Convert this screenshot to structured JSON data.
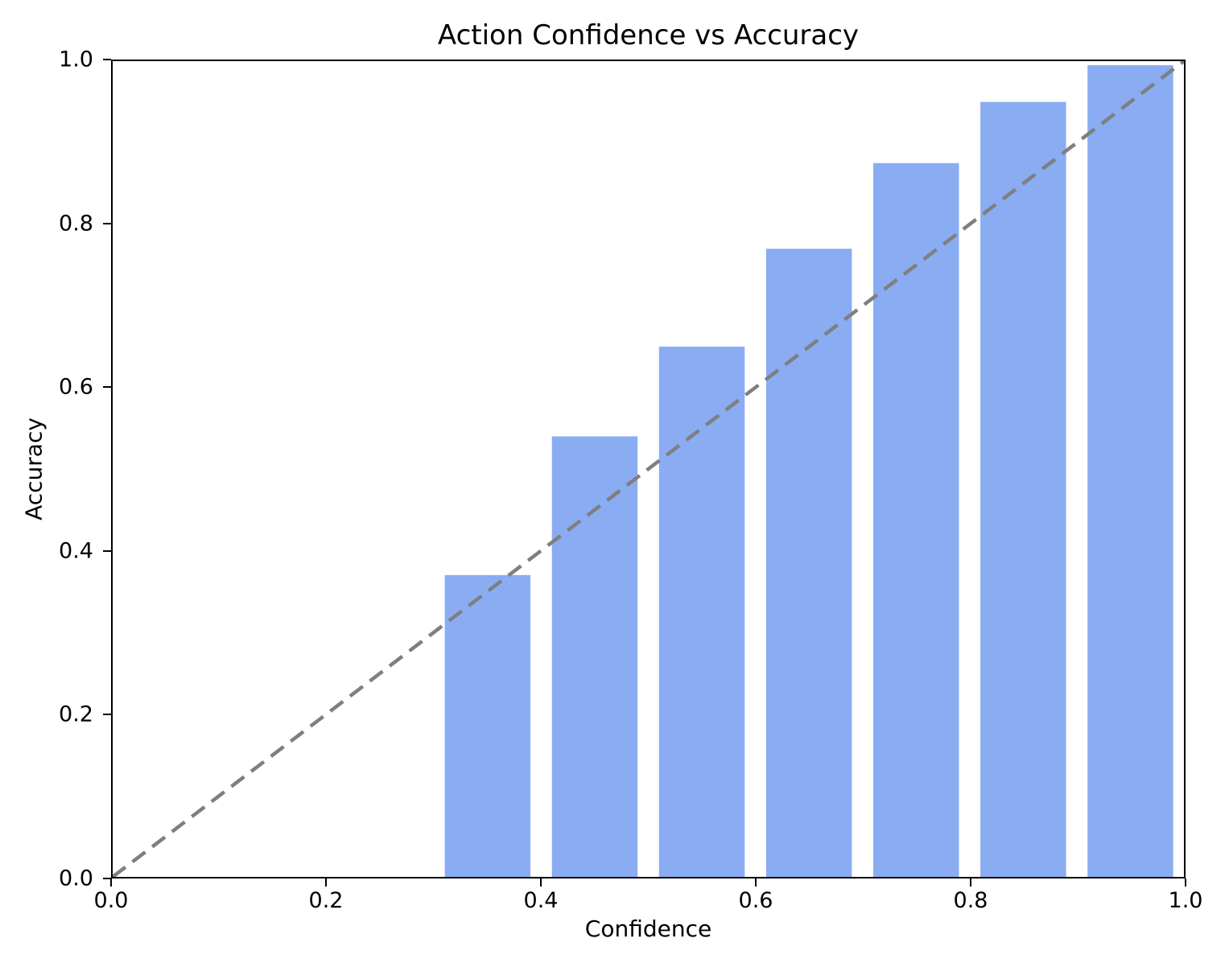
{
  "figure": {
    "background": "#ffffff",
    "text_color": "#000000",
    "spine_color": "#000000"
  },
  "chart_data": {
    "type": "bar",
    "title": "Action Confidence vs Accuracy",
    "xlabel": "Confidence",
    "ylabel": "Accuracy",
    "xlim": [
      0.0,
      1.0
    ],
    "ylim": [
      0.0,
      1.0
    ],
    "grid": false,
    "legend": "none",
    "x_ticks": [
      {
        "value": 0.0,
        "label": "0.0"
      },
      {
        "value": 0.2,
        "label": "0.2"
      },
      {
        "value": 0.4,
        "label": "0.4"
      },
      {
        "value": 0.6,
        "label": "0.6"
      },
      {
        "value": 0.8,
        "label": "0.8"
      },
      {
        "value": 1.0,
        "label": "1.0"
      }
    ],
    "y_ticks": [
      {
        "value": 0.0,
        "label": "0.0"
      },
      {
        "value": 0.2,
        "label": "0.2"
      },
      {
        "value": 0.4,
        "label": "0.4"
      },
      {
        "value": 0.6,
        "label": "0.6"
      },
      {
        "value": 0.8,
        "label": "0.8"
      },
      {
        "value": 1.0,
        "label": "1.0"
      }
    ],
    "bar_width": 0.08,
    "bar_color": "#8aacf3",
    "bars": [
      {
        "confidence": 0.35,
        "accuracy": 0.37
      },
      {
        "confidence": 0.45,
        "accuracy": 0.54
      },
      {
        "confidence": 0.55,
        "accuracy": 0.65
      },
      {
        "confidence": 0.65,
        "accuracy": 0.77
      },
      {
        "confidence": 0.75,
        "accuracy": 0.875
      },
      {
        "confidence": 0.85,
        "accuracy": 0.95
      },
      {
        "confidence": 0.95,
        "accuracy": 0.995
      }
    ],
    "reference_line": {
      "style": "dashed",
      "color": "#7f7f7f",
      "from": [
        0.0,
        0.0
      ],
      "to": [
        1.0,
        1.0
      ]
    }
  }
}
